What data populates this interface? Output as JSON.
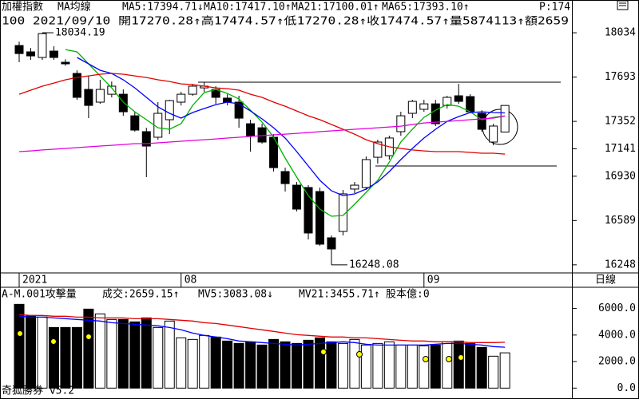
{
  "chart_data": [
    {
      "type": "candlestick",
      "title": "加權指數",
      "subtitle": "MA均線",
      "info": "100 2021/09/10 開17270.28↑高17474.57↑低17270.28↑收17474.57↑量5874113↑額2659",
      "categories": [
        "2021",
        null,
        null,
        null,
        null,
        null,
        null,
        null,
        null,
        null,
        null,
        null,
        null,
        null,
        "08",
        null,
        null,
        null,
        null,
        null,
        null,
        null,
        null,
        null,
        null,
        null,
        null,
        null,
        null,
        null,
        null,
        null,
        null,
        null,
        null,
        "09",
        null,
        null,
        null,
        null,
        null,
        null,
        null
      ],
      "open": [
        17936,
        17887,
        17844,
        17893,
        17807,
        17721,
        17598,
        17500,
        17561,
        17561,
        17395,
        17273,
        17230,
        17365,
        17500,
        17561,
        17610,
        17598,
        17531,
        17500,
        17334,
        17303,
        17230,
        16966,
        16861,
        16843,
        16812,
        16456,
        16505,
        16831,
        16843,
        17076,
        17088,
        17273,
        17414,
        17445,
        17487,
        17475,
        17549,
        17543,
        17414,
        17193,
        17270.28
      ],
      "high": [
        17966,
        17917,
        18034.19,
        17930,
        17830,
        17745,
        17702,
        17672,
        17659,
        17598,
        17426,
        17303,
        17500,
        17518,
        17580,
        17641,
        17653,
        17623,
        17561,
        17549,
        17365,
        17334,
        17254,
        16996,
        16886,
        16861,
        16843,
        16474,
        16824,
        16886,
        17082,
        17211,
        17242,
        17426,
        17518,
        17518,
        17518,
        17549,
        17641,
        17561,
        17438,
        17334,
        17474.57
      ],
      "low": [
        17807,
        17825,
        17825,
        17825,
        17780,
        17518,
        17377,
        17487,
        17537,
        17395,
        17273,
        16923,
        17211,
        17254,
        17475,
        17549,
        17580,
        17487,
        17475,
        17303,
        17119,
        17181,
        16966,
        16812,
        16659,
        16444,
        16395,
        16248.08,
        16474,
        16800,
        16824,
        17027,
        17058,
        17242,
        17377,
        17426,
        17316,
        17451,
        17487,
        17414,
        17273,
        17168,
        17270.28
      ],
      "close": [
        17874,
        17856,
        18028,
        17844,
        17795,
        17537,
        17475,
        17598,
        17623,
        17426,
        17285,
        17162,
        17414,
        17512,
        17561,
        17623,
        17623,
        17537,
        17500,
        17377,
        17242,
        17193,
        16996,
        16873,
        16677,
        16493,
        16407,
        16370,
        16794,
        16861,
        17058,
        17193,
        17224,
        17395,
        17506,
        17487,
        17334,
        17537,
        17506,
        17426,
        17291,
        17316,
        17474.57
      ],
      "up_color": "#ffffff",
      "down_color": "#000000",
      "series": [
        {
          "name": "MA5:17394.71↓",
          "color": "#00b000",
          "values": [
            null,
            null,
            null,
            null,
            17905,
            17887,
            17795,
            17702,
            17610,
            17500,
            17426,
            17365,
            17303,
            17291,
            17334,
            17475,
            17574,
            17598,
            17567,
            17524,
            17438,
            17346,
            17230,
            17070,
            16923,
            16781,
            16677,
            16622,
            16628,
            16714,
            16806,
            16898,
            17039,
            17193,
            17291,
            17383,
            17438,
            17481,
            17469,
            17426,
            17365,
            17383,
            17394.71
          ]
        },
        {
          "name": "MA10:17417.10↑",
          "color": "#0000ff",
          "values": [
            null,
            null,
            null,
            null,
            null,
            17844,
            17795,
            17745,
            17721,
            17672,
            17610,
            17537,
            17463,
            17414,
            17377,
            17420,
            17451,
            17481,
            17500,
            17487,
            17432,
            17371,
            17303,
            17224,
            17119,
            17009,
            16898,
            16818,
            16781,
            16794,
            16831,
            16886,
            16966,
            17058,
            17144,
            17224,
            17291,
            17352,
            17389,
            17420,
            17426,
            17420,
            17417.1
          ]
        },
        {
          "name": "MA21:17100.01↑",
          "color": "#e00000",
          "values": [
            17561,
            17592,
            17623,
            17647,
            17672,
            17690,
            17702,
            17715,
            17721,
            17715,
            17702,
            17690,
            17672,
            17659,
            17641,
            17635,
            17623,
            17610,
            17604,
            17592,
            17561,
            17537,
            17500,
            17469,
            17432,
            17395,
            17365,
            17328,
            17291,
            17254,
            17211,
            17181,
            17156,
            17144,
            17132,
            17125,
            17119,
            17119,
            17119,
            17113,
            17107,
            17107,
            17100.01
          ]
        },
        {
          "name": "MA65:17393.10↑",
          "color": "#e000e0",
          "values": [
            17119,
            17125,
            17132,
            17138,
            17144,
            17150,
            17156,
            17162,
            17168,
            17174,
            17181,
            17181,
            17187,
            17193,
            17199,
            17205,
            17211,
            17217,
            17224,
            17230,
            17236,
            17242,
            17248,
            17254,
            17260,
            17266,
            17273,
            17279,
            17285,
            17291,
            17297,
            17303,
            17309,
            17315,
            17328,
            17340,
            17346,
            17352,
            17358,
            17365,
            17371,
            17377,
            17393.1
          ]
        }
      ],
      "extra_legend": {
        "text": "P:174",
        "color": "#008080"
      },
      "annotations": {
        "high_label": "18034.19",
        "low_label": "16248.08"
      },
      "ylim": [
        16198,
        18188
      ],
      "yticks": [
        18034,
        17693,
        17352,
        17141,
        16930,
        16589,
        16248
      ]
    },
    {
      "type": "bar",
      "title": "A-M.001攻擊量",
      "series": [
        {
          "name": "成交:2659.15↑",
          "color": "#009000",
          "values": [
            6316,
            5474,
            5354,
            4571,
            4571,
            4571,
            5955,
            5594,
            5173,
            5173,
            4992,
            5293,
            4571,
            5053,
            3789,
            3669,
            3970,
            3850,
            3549,
            3368,
            3489,
            3248,
            3669,
            3489,
            3368,
            3609,
            3789,
            3489,
            3368,
            3669,
            3248,
            3368,
            3489,
            3248,
            3248,
            3188,
            3248,
            3489,
            3549,
            3368,
            3068,
            2406,
            2659.15
          ]
        },
        {
          "name": "MV5:3083.08↓",
          "color": "#0000ff",
          "type": "line",
          "values": [
            5414,
            5353,
            5353,
            5293,
            5233,
            5173,
            5113,
            5053,
            4932,
            4872,
            4812,
            4752,
            4692,
            4571,
            4391,
            4150,
            3970,
            3850,
            3729,
            3549,
            3489,
            3429,
            3368,
            3308,
            3248,
            3308,
            3368,
            3429,
            3489,
            3429,
            3308,
            3248,
            3248,
            3248,
            3248,
            3248,
            3308,
            3368,
            3368,
            3308,
            3248,
            3128,
            3083.08
          ]
        },
        {
          "name": "MV21:3455.71↑",
          "color": "#e00000",
          "type": "line",
          "values": [
            5534,
            5474,
            5474,
            5414,
            5414,
            5353,
            5353,
            5293,
            5293,
            5293,
            5233,
            5233,
            5233,
            5173,
            5113,
            5053,
            4932,
            4872,
            4752,
            4632,
            4511,
            4391,
            4271,
            4150,
            4030,
            3970,
            3910,
            3850,
            3850,
            3789,
            3789,
            3729,
            3669,
            3609,
            3549,
            3549,
            3489,
            3489,
            3489,
            3429,
            3429,
            3429,
            3455.71
          ]
        }
      ],
      "extra_legend": {
        "text": "股本億:0",
        "color": "#e000e0"
      },
      "ylim": [
        -400,
        7600
      ],
      "yticks": [
        {
          "value": 6000,
          "label": "6000.0"
        },
        {
          "value": 4000,
          "label": "4000.0"
        },
        {
          "value": 2000,
          "label": "2000.0"
        },
        {
          "value": 0,
          "label": "0.0"
        }
      ]
    }
  ],
  "period": "日線",
  "footer": "奇狐勝券 v5.2"
}
